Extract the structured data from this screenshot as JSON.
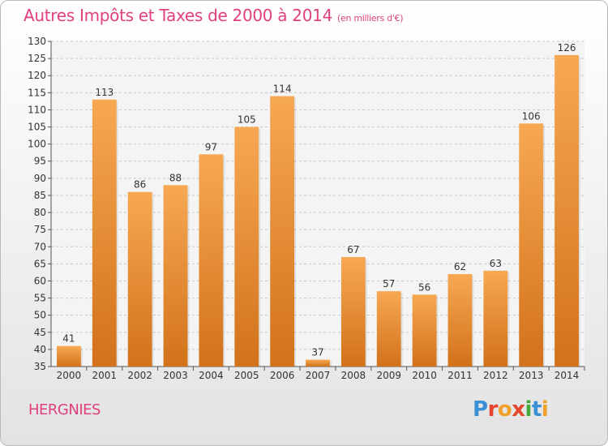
{
  "header": {
    "title": "Autres Impôts et Taxes de 2000 à 2014",
    "unit": "(en milliers d'€)"
  },
  "commune": "HERGNIES",
  "logo": {
    "text": "Proxiti",
    "letters": [
      {
        "char": "P",
        "color": "#3a8fd6"
      },
      {
        "char": "r",
        "color": "#e5452f"
      },
      {
        "char": "o",
        "color": "#f0a12b"
      },
      {
        "char": "x",
        "color": "#e5452f"
      },
      {
        "char": "i",
        "color": "#44a83a"
      },
      {
        "char": "t",
        "color": "#3a8fd6"
      },
      {
        "char": "i",
        "color": "#f0a12b"
      }
    ]
  },
  "colors": {
    "title": "#e0407f",
    "bar_top": "#f7a853",
    "bar_bottom": "#d2721a",
    "grid": "#c8c8c8"
  },
  "chart_data": {
    "type": "bar",
    "title": "Autres Impôts et Taxes de 2000 à 2014",
    "xlabel": "",
    "ylabel": "",
    "categories": [
      "2000",
      "2001",
      "2002",
      "2003",
      "2004",
      "2005",
      "2006",
      "2007",
      "2008",
      "2009",
      "2010",
      "2011",
      "2012",
      "2013",
      "2014"
    ],
    "values": [
      41,
      113,
      86,
      88,
      97,
      105,
      114,
      37,
      67,
      57,
      56,
      62,
      63,
      106,
      126
    ],
    "ylim": [
      35,
      130
    ],
    "ytick_step": 5,
    "grid": true,
    "legend": "none"
  }
}
